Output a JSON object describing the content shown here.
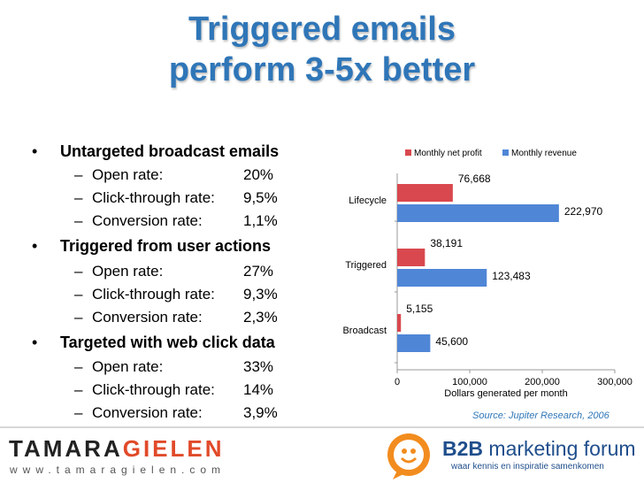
{
  "title": {
    "line1": "Triggered emails",
    "line2": "perform 3-5x better"
  },
  "bullets": [
    {
      "heading": "Untargeted broadcast emails",
      "items": [
        {
          "label": "Open rate:",
          "value": "20%"
        },
        {
          "label": "Click-through rate:",
          "value": "9,5%"
        },
        {
          "label": "Conversion rate:",
          "value": "1,1%"
        }
      ]
    },
    {
      "heading": "Triggered from user actions",
      "items": [
        {
          "label": "Open rate:",
          "value": "27%"
        },
        {
          "label": "Click-through rate:",
          "value": "9,3%"
        },
        {
          "label": "Conversion rate:",
          "value": "2,3%"
        }
      ]
    },
    {
      "heading": "Targeted with web click data",
      "items": [
        {
          "label": "Open rate:",
          "value": "33%"
        },
        {
          "label": "Click-through rate:",
          "value": "14%"
        },
        {
          "label": "Conversion rate:",
          "value": "3,9%"
        }
      ]
    }
  ],
  "chart_data": {
    "type": "bar",
    "orientation": "horizontal",
    "categories": [
      "Lifecycle",
      "Triggered",
      "Broadcast"
    ],
    "series": [
      {
        "name": "Monthly net profit",
        "values": [
          76668,
          38191,
          5155
        ],
        "labels": [
          "76,668",
          "38,191",
          "5,155"
        ],
        "color": "#d9484e"
      },
      {
        "name": "Monthly revenue",
        "values": [
          222970,
          123483,
          45600
        ],
        "labels": [
          "222,970",
          "123,483",
          "45,600"
        ],
        "color": "#4f86d6"
      }
    ],
    "xlabel": "Dollars generated per month",
    "xlim": [
      0,
      300000
    ],
    "xticks": [
      0,
      100000,
      200000,
      300000
    ],
    "xtick_labels": [
      "0",
      "100,000",
      "200,000",
      "300,000"
    ],
    "legend": "top",
    "grid": false
  },
  "source": "Source: Jupiter Research, 2006",
  "footer": {
    "logo_part1": "TAMARA",
    "logo_part2": "GIELEN",
    "url": "www.tamaragielen.com",
    "b2b_name_bold": "B2B",
    "b2b_name_rest": " marketing forum",
    "b2b_tagline": "waar kennis en inspiratie samenkomen",
    "b2b_icon": "smiley-speech-bubble-icon"
  },
  "colors": {
    "title": "#2f76b8",
    "profit": "#d9484e",
    "revenue": "#4f86d6",
    "source": "#2f76b8",
    "logo_accent": "#e14a2a",
    "b2b": "#1f4e8c"
  }
}
